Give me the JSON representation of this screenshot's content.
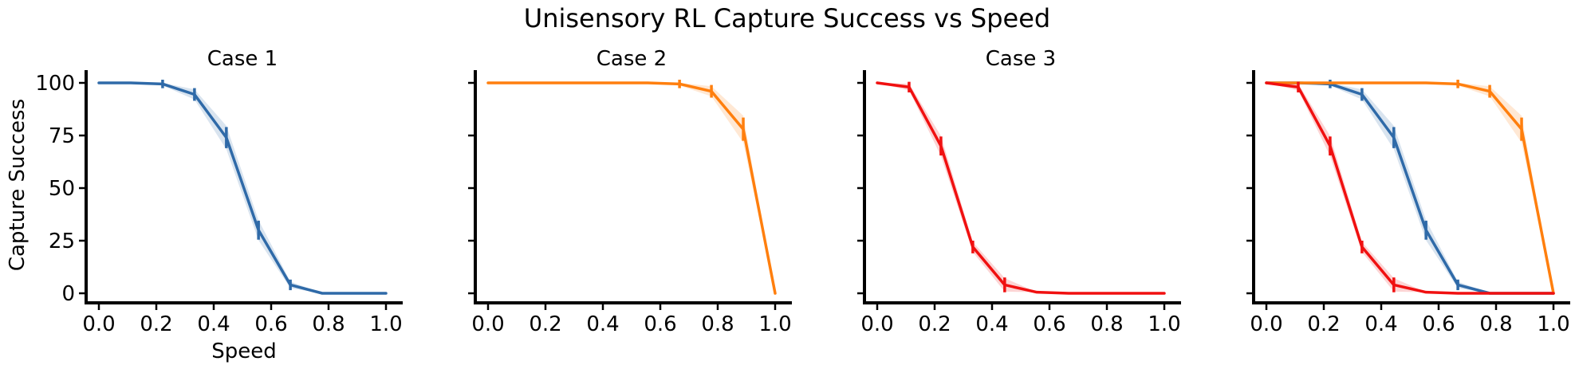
{
  "figure": {
    "title": "Unisensory RL Capture Success vs Speed",
    "xlabel": "Speed",
    "ylabel": "Capture Success"
  },
  "colors": {
    "case1": "#2f6aa8",
    "case2": "#ff7f0e",
    "case3": "#f01010"
  },
  "chart_data": [
    {
      "type": "line",
      "title": "Case 1",
      "xlabel": "Speed",
      "ylabel": "Capture Success",
      "x": [
        0.0,
        0.111,
        0.222,
        0.333,
        0.444,
        0.556,
        0.667,
        0.778,
        0.889,
        1.0
      ],
      "series": [
        {
          "color": "#2f6aa8",
          "values": [
            100,
            100,
            99.5,
            94.5,
            74,
            30,
            4,
            0,
            0,
            0
          ],
          "error": [
            0,
            0,
            0.5,
            1.5,
            3.5,
            3,
            1,
            0,
            0,
            0
          ]
        }
      ],
      "xticks": [
        "0.0",
        "0.2",
        "0.4",
        "0.6",
        "0.8",
        "1.0"
      ],
      "yticks": [
        "0",
        "25",
        "50",
        "75",
        "100"
      ],
      "xlim": [
        0,
        1
      ],
      "ylim": [
        0,
        100
      ]
    },
    {
      "type": "line",
      "title": "Case 2",
      "x": [
        0.0,
        0.111,
        0.222,
        0.333,
        0.444,
        0.556,
        0.667,
        0.778,
        0.889,
        1.0
      ],
      "series": [
        {
          "color": "#ff7f0e",
          "values": [
            100,
            100,
            100,
            100,
            100,
            100,
            99.5,
            96,
            78,
            0
          ],
          "error": [
            0,
            0,
            0,
            0,
            0,
            0,
            0.5,
            1.5,
            4,
            0
          ]
        }
      ],
      "xticks": [
        "0.0",
        "0.2",
        "0.4",
        "0.6",
        "0.8",
        "1.0"
      ],
      "xlim": [
        0,
        1
      ],
      "ylim": [
        0,
        100
      ]
    },
    {
      "type": "line",
      "title": "Case 3",
      "x": [
        0.0,
        0.111,
        0.222,
        0.333,
        0.444,
        0.556,
        0.667,
        0.778,
        0.889,
        1.0
      ],
      "series": [
        {
          "color": "#f01010",
          "values": [
            100,
            98,
            70,
            22,
            4,
            0.5,
            0,
            0,
            0,
            0
          ],
          "error": [
            0,
            1,
            3,
            1.5,
            2,
            0,
            0,
            0,
            0,
            0
          ]
        }
      ],
      "xticks": [
        "0.0",
        "0.2",
        "0.4",
        "0.6",
        "0.8",
        "1.0"
      ],
      "xlim": [
        0,
        1
      ],
      "ylim": [
        0,
        100
      ]
    },
    {
      "type": "line",
      "title": "",
      "x": [
        0.0,
        0.111,
        0.222,
        0.333,
        0.444,
        0.556,
        0.667,
        0.778,
        0.889,
        1.0
      ],
      "series": [
        {
          "color": "#2f6aa8",
          "values": [
            100,
            100,
            99.5,
            94.5,
            74,
            30,
            4,
            0,
            0,
            0
          ],
          "error": [
            0,
            0,
            0.5,
            1.5,
            3.5,
            3,
            1,
            0,
            0,
            0
          ]
        },
        {
          "color": "#ff7f0e",
          "values": [
            100,
            100,
            100,
            100,
            100,
            100,
            99.5,
            96,
            78,
            0
          ],
          "error": [
            0,
            0,
            0,
            0,
            0,
            0,
            0.5,
            1.5,
            4,
            0
          ]
        },
        {
          "color": "#f01010",
          "values": [
            100,
            98,
            70,
            22,
            4,
            0.5,
            0,
            0,
            0,
            0
          ],
          "error": [
            0,
            1,
            3,
            1.5,
            2,
            0,
            0,
            0,
            0,
            0
          ]
        }
      ],
      "xticks": [
        "0.0",
        "0.2",
        "0.4",
        "0.6",
        "0.8",
        "1.0"
      ],
      "xlim": [
        0,
        1
      ],
      "ylim": [
        0,
        100
      ]
    }
  ]
}
